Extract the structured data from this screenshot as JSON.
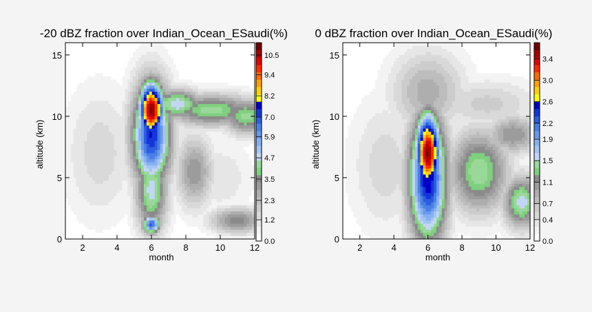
{
  "chart_data": [
    {
      "type": "heatmap",
      "title": "-20 dBZ fraction over Indian_Ocean_ESaudi(%)",
      "xlabel": "month",
      "ylabel": "altitude (km)",
      "xlim": [
        1,
        12
      ],
      "ylim": [
        0,
        16
      ],
      "x_ticks": [
        "2",
        "4",
        "6",
        "8",
        "10",
        "12"
      ],
      "y_ticks": [
        "0",
        "5",
        "10",
        "15"
      ],
      "colorbar": {
        "min": 0.0,
        "max": 11.2,
        "tick_labels": [
          "0.0",
          "1.2",
          "2.3",
          "3.5",
          "4.7",
          "5.9",
          "7.0",
          "8.2",
          "9.4",
          "10.5"
        ]
      },
      "features": [
        {
          "x": 6,
          "y": 10.5,
          "value": 11.0,
          "sx": 0.55,
          "sy": 1.7
        },
        {
          "x": 6,
          "y": 8.5,
          "value": 7.5,
          "sx": 0.85,
          "sy": 3.2
        },
        {
          "x": 6,
          "y": 4.0,
          "value": 4.8,
          "sx": 0.7,
          "sy": 2.6
        },
        {
          "x": 6,
          "y": 1.2,
          "value": 6.8,
          "sx": 0.4,
          "sy": 0.6
        },
        {
          "x": 7.5,
          "y": 11.0,
          "value": 5.0,
          "sx": 1.1,
          "sy": 0.9
        },
        {
          "x": 9.5,
          "y": 10.5,
          "value": 4.4,
          "sx": 2.0,
          "sy": 1.0
        },
        {
          "x": 11.5,
          "y": 10.0,
          "value": 4.4,
          "sx": 1.0,
          "sy": 1.1
        },
        {
          "x": 10.0,
          "y": 5.0,
          "value": 1.2,
          "sx": 1.4,
          "sy": 2.2
        },
        {
          "x": 8.5,
          "y": 5.5,
          "value": 3.3,
          "sx": 0.8,
          "sy": 2.2
        },
        {
          "x": 11.0,
          "y": 1.5,
          "value": 3.6,
          "sx": 1.2,
          "sy": 0.8
        },
        {
          "x": 3.0,
          "y": 7.0,
          "value": 1.5,
          "sx": 1.5,
          "sy": 4.0
        }
      ]
    },
    {
      "type": "heatmap",
      "title": "0 dBZ fraction over Indian_Ocean_ESaudi(%)",
      "xlabel": "month",
      "ylabel": "altitude (km)",
      "xlim": [
        1,
        12
      ],
      "ylim": [
        0,
        16
      ],
      "x_ticks": [
        "2",
        "4",
        "6",
        "8",
        "10",
        "12"
      ],
      "y_ticks": [
        "0",
        "5",
        "10",
        "15"
      ],
      "colorbar": {
        "min": 0.0,
        "max": 3.7,
        "tick_labels": [
          "0.0",
          "0.4",
          "0.7",
          "1.1",
          "1.5",
          "1.9",
          "2.2",
          "2.6",
          "3.0",
          "3.4"
        ]
      },
      "features": [
        {
          "x": 6,
          "y": 7.0,
          "value": 3.6,
          "sx": 0.55,
          "sy": 2.4
        },
        {
          "x": 6,
          "y": 5.0,
          "value": 2.6,
          "sx": 0.85,
          "sy": 4.0
        },
        {
          "x": 9.0,
          "y": 5.5,
          "value": 1.5,
          "sx": 1.3,
          "sy": 2.5
        },
        {
          "x": 11.5,
          "y": 3.0,
          "value": 1.6,
          "sx": 0.8,
          "sy": 1.6
        },
        {
          "x": 11.0,
          "y": 8.5,
          "value": 1.1,
          "sx": 1.2,
          "sy": 1.2
        },
        {
          "x": 6,
          "y": 12.0,
          "value": 0.9,
          "sx": 1.6,
          "sy": 2.5
        },
        {
          "x": 3.5,
          "y": 6.0,
          "value": 0.5,
          "sx": 1.5,
          "sy": 4.0
        },
        {
          "x": 9.5,
          "y": 11.0,
          "value": 0.6,
          "sx": 2.2,
          "sy": 1.5
        }
      ]
    }
  ]
}
